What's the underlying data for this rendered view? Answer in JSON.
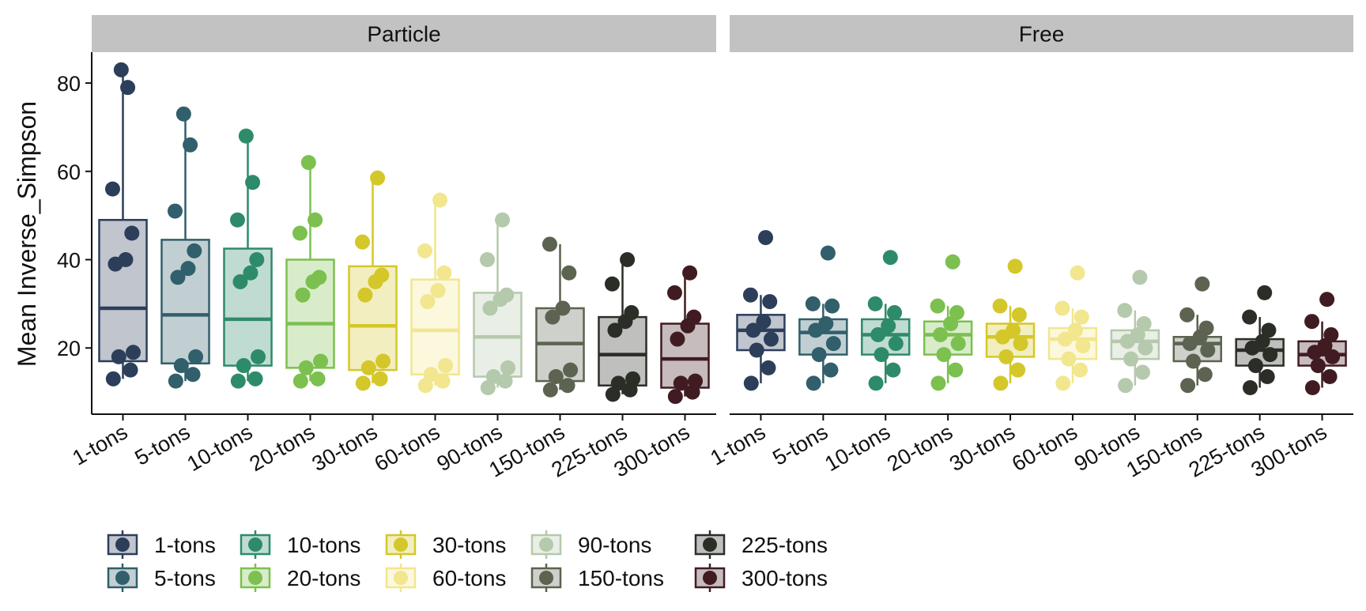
{
  "chart_data": {
    "type": "boxplot",
    "ylabel": "Mean Inverse_Simpson",
    "xlabel": "",
    "ylim": [
      5,
      87
    ],
    "y_ticks": [
      20,
      40,
      60,
      80
    ],
    "grid": false,
    "legend_position": "bottom",
    "categories": [
      "1-tons",
      "5-tons",
      "10-tons",
      "20-tons",
      "30-tons",
      "60-tons",
      "90-tons",
      "150-tons",
      "225-tons",
      "300-tons"
    ],
    "colors": [
      "#2c3e5a",
      "#315f6b",
      "#2e8b6a",
      "#7cc04f",
      "#d4c72a",
      "#f2e68e",
      "#b5c9ac",
      "#5c6350",
      "#2b2e27",
      "#401c22"
    ],
    "panels": [
      {
        "name": "Particle",
        "boxes": [
          {
            "category": "1-tons",
            "min": 13,
            "q1": 17,
            "median": 29,
            "q3": 49,
            "max": 83,
            "points": [
              13,
              15,
              18,
              19,
              39,
              40,
              46,
              56,
              79,
              83
            ]
          },
          {
            "category": "5-tons",
            "min": 12.5,
            "q1": 16.5,
            "median": 27.5,
            "q3": 44.5,
            "max": 73,
            "points": [
              12.5,
              14,
              16,
              18,
              36,
              38,
              42,
              51,
              66,
              73
            ]
          },
          {
            "category": "10-tons",
            "min": 12.5,
            "q1": 16,
            "median": 26.5,
            "q3": 42.5,
            "max": 68,
            "points": [
              12.5,
              13,
              16,
              18,
              35,
              37,
              40,
              49,
              57.5,
              68
            ]
          },
          {
            "category": "20-tons",
            "min": 12.5,
            "q1": 15.5,
            "median": 25.5,
            "q3": 40,
            "max": 62,
            "points": [
              12.5,
              13,
              15.5,
              17,
              32,
              35,
              36,
              46,
              49,
              62
            ]
          },
          {
            "category": "30-tons",
            "min": 12,
            "q1": 15,
            "median": 25,
            "q3": 38.5,
            "max": 58.5,
            "points": [
              12,
              13,
              15.5,
              17,
              32,
              35,
              36.5,
              44,
              58.5
            ]
          },
          {
            "category": "60-tons",
            "min": 11.5,
            "q1": 14,
            "median": 24,
            "q3": 35.5,
            "max": 53.5,
            "points": [
              11.5,
              12.5,
              14,
              16,
              30.5,
              33,
              37,
              42,
              53.5
            ]
          },
          {
            "category": "90-tons",
            "min": 11,
            "q1": 13.5,
            "median": 22.5,
            "q3": 32.5,
            "max": 49,
            "points": [
              11,
              12.5,
              13.5,
              15.5,
              29,
              31,
              32,
              40,
              49
            ]
          },
          {
            "category": "150-tons",
            "min": 10.5,
            "q1": 12.5,
            "median": 21,
            "q3": 29,
            "max": 43.5,
            "points": [
              10.5,
              11.5,
              13.5,
              15,
              27,
              29,
              37,
              43.5
            ]
          },
          {
            "category": "225-tons",
            "min": 9.5,
            "q1": 11.5,
            "median": 18.5,
            "q3": 27,
            "max": 40,
            "points": [
              9.5,
              10.5,
              12,
              13,
              24,
              26,
              28,
              34.5,
              40
            ]
          },
          {
            "category": "300-tons",
            "min": 9,
            "q1": 11,
            "median": 17.5,
            "q3": 25.5,
            "max": 37,
            "points": [
              9,
              10,
              12,
              12.5,
              22,
              25,
              27,
              32.5,
              37
            ]
          }
        ]
      },
      {
        "name": "Free",
        "boxes": [
          {
            "category": "1-tons",
            "min": 12,
            "q1": 19.5,
            "median": 24,
            "q3": 27.5,
            "max": 32,
            "outliers": [
              45
            ],
            "points": [
              12,
              15.5,
              19.5,
              22,
              24,
              26,
              30.5,
              32,
              45
            ]
          },
          {
            "category": "5-tons",
            "min": 12,
            "q1": 18.5,
            "median": 23.5,
            "q3": 26.5,
            "max": 30,
            "outliers": [
              41.5
            ],
            "points": [
              12,
              15,
              18.5,
              21,
              24,
              25.5,
              29.5,
              30,
              41.5
            ]
          },
          {
            "category": "10-tons",
            "min": 12,
            "q1": 18.5,
            "median": 23,
            "q3": 26.5,
            "max": 30,
            "outliers": [
              40.5
            ],
            "points": [
              12,
              15,
              18.5,
              21,
              23,
              25,
              28,
              30,
              40.5
            ]
          },
          {
            "category": "20-tons",
            "min": 12,
            "q1": 18.5,
            "median": 23,
            "q3": 26,
            "max": 29.5,
            "outliers": [
              39.5
            ],
            "points": [
              12,
              15,
              18.5,
              21,
              23,
              25.5,
              28,
              29.5,
              39.5
            ]
          },
          {
            "category": "30-tons",
            "min": 12,
            "q1": 18,
            "median": 22.5,
            "q3": 25.5,
            "max": 29.5,
            "outliers": [
              38.5
            ],
            "points": [
              12,
              15,
              18,
              21,
              22.5,
              24,
              27.5,
              29.5,
              38.5
            ]
          },
          {
            "category": "60-tons",
            "min": 12,
            "q1": 17.5,
            "median": 22,
            "q3": 24.5,
            "max": 29,
            "outliers": [
              37
            ],
            "points": [
              12,
              15,
              17.5,
              20.5,
              22,
              24,
              27,
              29,
              37
            ]
          },
          {
            "category": "90-tons",
            "min": 11.5,
            "q1": 17.5,
            "median": 21.5,
            "q3": 24,
            "max": 28.5,
            "outliers": [
              36
            ],
            "points": [
              11.5,
              14.5,
              17.5,
              20,
              21.5,
              23,
              25.5,
              28.5,
              36
            ]
          },
          {
            "category": "150-tons",
            "min": 11.5,
            "q1": 17,
            "median": 21,
            "q3": 22.5,
            "max": 27.5,
            "outliers": [
              34.5
            ],
            "points": [
              11.5,
              14,
              17,
              19.5,
              21,
              22.5,
              24.5,
              27.5,
              34.5
            ]
          },
          {
            "category": "225-tons",
            "min": 11,
            "q1": 16,
            "median": 19.5,
            "q3": 22,
            "max": 27,
            "outliers": [
              32.5
            ],
            "points": [
              11,
              13.5,
              16,
              18.5,
              20,
              21.5,
              24,
              27,
              32.5
            ]
          },
          {
            "category": "300-tons",
            "min": 11,
            "q1": 16,
            "median": 18.5,
            "q3": 21.5,
            "max": 26,
            "outliers": [
              31
            ],
            "points": [
              11,
              13.5,
              16,
              18,
              19,
              20.5,
              23,
              26,
              31
            ]
          }
        ]
      }
    ]
  }
}
